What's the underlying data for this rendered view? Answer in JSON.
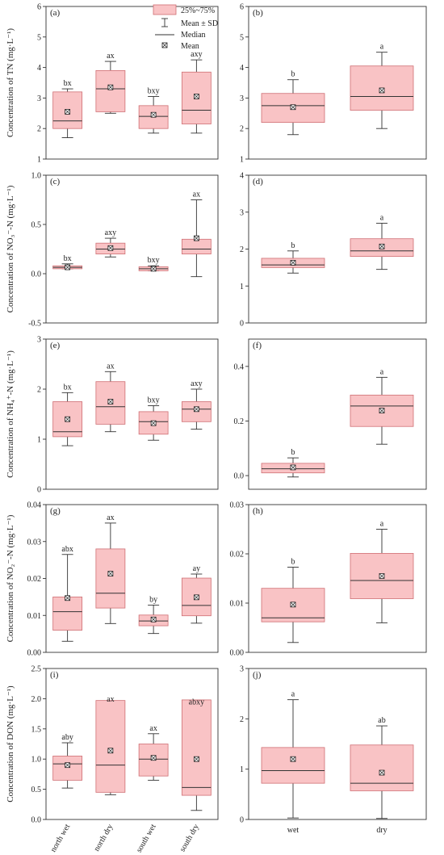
{
  "legend": {
    "box_label": "25%~75%",
    "sd_label": "Mean ± SD",
    "median_label": "Median",
    "mean_label": "Mean"
  },
  "colors": {
    "box_fill": "#f9c3c5",
    "box_stroke": "#cf6f74",
    "line": "#333333"
  },
  "chart_data": [
    {
      "panel": "(a)",
      "type": "box",
      "ylabel": "Concentration of TN (mg·L⁻¹)",
      "ylim": [
        1,
        6
      ],
      "yticks": [
        1,
        2,
        3,
        4,
        5,
        6
      ],
      "categories": [],
      "boxes": [
        {
          "q1": 2.0,
          "q3": 3.2,
          "median": 2.25,
          "mean": 2.55,
          "sd_low": 1.7,
          "sd_high": 3.3,
          "letter": "bx"
        },
        {
          "q1": 2.55,
          "q3": 3.9,
          "median": 3.3,
          "mean": 3.35,
          "sd_low": 2.5,
          "sd_high": 4.2,
          "letter": "ax"
        },
        {
          "q1": 2.0,
          "q3": 2.75,
          "median": 2.4,
          "mean": 2.45,
          "sd_low": 1.85,
          "sd_high": 3.05,
          "letter": "bxy"
        },
        {
          "q1": 2.15,
          "q3": 3.85,
          "median": 2.6,
          "mean": 3.05,
          "sd_low": 1.85,
          "sd_high": 4.25,
          "letter": "axy"
        }
      ]
    },
    {
      "panel": "(b)",
      "type": "box",
      "ylabel": "",
      "ylim": [
        1,
        6
      ],
      "yticks": [
        1,
        2,
        3,
        4,
        5,
        6
      ],
      "categories": [],
      "boxes": [
        {
          "q1": 2.2,
          "q3": 3.15,
          "median": 2.75,
          "mean": 2.7,
          "sd_low": 1.8,
          "sd_high": 3.6,
          "letter": "b"
        },
        {
          "q1": 2.6,
          "q3": 4.05,
          "median": 3.05,
          "mean": 3.25,
          "sd_low": 2.0,
          "sd_high": 4.5,
          "letter": "a"
        }
      ]
    },
    {
      "panel": "(c)",
      "type": "box",
      "ylabel": "Concentration of NO₃⁻-N (mg·L⁻¹)",
      "ylim": [
        -0.5,
        1.0
      ],
      "yticks": [
        "-0.5",
        "0.0",
        "0.5",
        "1.0"
      ],
      "categories": [],
      "boxes": [
        {
          "q1": 0.05,
          "q3": 0.08,
          "median": 0.065,
          "mean": 0.065,
          "sd_low": 0.05,
          "sd_high": 0.1,
          "letter": "bx"
        },
        {
          "q1": 0.2,
          "q3": 0.31,
          "median": 0.25,
          "mean": 0.26,
          "sd_low": 0.17,
          "sd_high": 0.36,
          "letter": "axy"
        },
        {
          "q1": 0.03,
          "q3": 0.07,
          "median": 0.05,
          "mean": 0.05,
          "sd_low": 0.03,
          "sd_high": 0.08,
          "letter": "bxy"
        },
        {
          "q1": 0.2,
          "q3": 0.35,
          "median": 0.25,
          "mean": 0.36,
          "sd_low": -0.03,
          "sd_high": 0.75,
          "letter": "ax"
        }
      ]
    },
    {
      "panel": "(d)",
      "type": "box",
      "ylabel": "",
      "ylim": [
        0,
        4
      ],
      "yticks": [
        0,
        1,
        2,
        3,
        4
      ],
      "categories": [],
      "boxes": [
        {
          "q1": 1.5,
          "q3": 1.75,
          "median": 1.57,
          "mean": 1.63,
          "sd_low": 1.35,
          "sd_high": 1.95,
          "letter": "b"
        },
        {
          "q1": 1.8,
          "q3": 2.28,
          "median": 1.95,
          "mean": 2.07,
          "sd_low": 1.45,
          "sd_high": 2.7,
          "letter": "a"
        }
      ]
    },
    {
      "panel": "(e)",
      "type": "box",
      "ylabel": "Concentration of NH₄⁺-N (mg·L⁻¹)",
      "ylim": [
        0,
        3
      ],
      "yticks": [
        0,
        1,
        2,
        3
      ],
      "categories": [],
      "boxes": [
        {
          "q1": 1.05,
          "q3": 1.75,
          "median": 1.15,
          "mean": 1.4,
          "sd_low": 0.87,
          "sd_high": 1.93,
          "letter": "bx"
        },
        {
          "q1": 1.3,
          "q3": 2.15,
          "median": 1.65,
          "mean": 1.75,
          "sd_low": 1.15,
          "sd_high": 2.35,
          "letter": "ax"
        },
        {
          "q1": 1.1,
          "q3": 1.55,
          "median": 1.35,
          "mean": 1.32,
          "sd_low": 0.98,
          "sd_high": 1.67,
          "letter": "bxy"
        },
        {
          "q1": 1.35,
          "q3": 1.75,
          "median": 1.6,
          "mean": 1.6,
          "sd_low": 1.2,
          "sd_high": 2.0,
          "letter": "axy"
        }
      ]
    },
    {
      "panel": "(f)",
      "type": "box",
      "ylabel": "",
      "ylim": [
        -0.05,
        0.5
      ],
      "yticks": [
        "0.0",
        "0.2",
        "0.4"
      ],
      "categories": [],
      "boxes": [
        {
          "q1": 0.01,
          "q3": 0.045,
          "median": 0.025,
          "mean": 0.03,
          "sd_low": -0.005,
          "sd_high": 0.065,
          "letter": "b"
        },
        {
          "q1": 0.18,
          "q3": 0.295,
          "median": 0.255,
          "mean": 0.238,
          "sd_low": 0.115,
          "sd_high": 0.36,
          "letter": "a"
        }
      ]
    },
    {
      "panel": "(g)",
      "type": "box",
      "ylabel": "Concentration of NO₂⁻-N (mg·L⁻¹)",
      "ylim": [
        0,
        0.04
      ],
      "yticks": [
        "0.00",
        "0.01",
        "0.02",
        "0.03",
        "0.04"
      ],
      "categories": [],
      "boxes": [
        {
          "q1": 0.006,
          "q3": 0.015,
          "median": 0.011,
          "mean": 0.0147,
          "sd_low": 0.003,
          "sd_high": 0.0265,
          "letter": "abx"
        },
        {
          "q1": 0.012,
          "q3": 0.028,
          "median": 0.016,
          "mean": 0.0213,
          "sd_low": 0.0078,
          "sd_high": 0.035,
          "letter": "ax"
        },
        {
          "q1": 0.0072,
          "q3": 0.0101,
          "median": 0.0085,
          "mean": 0.0089,
          "sd_low": 0.0051,
          "sd_high": 0.0128,
          "letter": "by"
        },
        {
          "q1": 0.0099,
          "q3": 0.0201,
          "median": 0.0127,
          "mean": 0.0149,
          "sd_low": 0.0079,
          "sd_high": 0.0212,
          "letter": "ay"
        }
      ]
    },
    {
      "panel": "(h)",
      "type": "box",
      "ylabel": "",
      "ylim": [
        0,
        0.03
      ],
      "yticks": [
        "0.00",
        "0.01",
        "0.02",
        "0.03"
      ],
      "categories": [],
      "boxes": [
        {
          "q1": 0.0062,
          "q3": 0.013,
          "median": 0.007,
          "mean": 0.0097,
          "sd_low": 0.002,
          "sd_high": 0.0173,
          "letter": "b"
        },
        {
          "q1": 0.0109,
          "q3": 0.0201,
          "median": 0.0146,
          "mean": 0.0155,
          "sd_low": 0.006,
          "sd_high": 0.025,
          "letter": "a"
        }
      ]
    },
    {
      "panel": "(i)",
      "type": "box",
      "ylabel": "Concentration of DON (mg·L⁻¹)",
      "ylim": [
        0,
        2.5
      ],
      "yticks": [
        "0.0",
        "0.5",
        "1.0",
        "1.5",
        "2.0",
        "2.5"
      ],
      "categories": [
        "north wet",
        "north dry",
        "south wet",
        "south dry"
      ],
      "boxes": [
        {
          "q1": 0.65,
          "q3": 1.05,
          "median": 0.92,
          "mean": 0.9,
          "sd_low": 0.52,
          "sd_high": 1.27,
          "letter": "aby"
        },
        {
          "q1": 0.45,
          "q3": 1.97,
          "median": 0.9,
          "mean": 1.14,
          "sd_low": 0.41,
          "sd_high": 1.9,
          "letter": "ax"
        },
        {
          "q1": 0.72,
          "q3": 1.25,
          "median": 1.0,
          "mean": 1.02,
          "sd_low": 0.65,
          "sd_high": 1.42,
          "letter": "ax"
        },
        {
          "q1": 0.4,
          "q3": 1.98,
          "median": 0.53,
          "mean": 1.0,
          "sd_low": 0.15,
          "sd_high": 1.85,
          "letter": "abxy"
        }
      ]
    },
    {
      "panel": "(j)",
      "type": "box",
      "ylabel": "",
      "ylim": [
        0,
        3
      ],
      "yticks": [
        0,
        1,
        2,
        3
      ],
      "categories": [
        "wet",
        "dry"
      ],
      "boxes": [
        {
          "q1": 0.72,
          "q3": 1.43,
          "median": 0.97,
          "mean": 1.2,
          "sd_low": 0.03,
          "sd_high": 2.38,
          "letter": "a"
        },
        {
          "q1": 0.57,
          "q3": 1.48,
          "median": 0.72,
          "mean": 0.93,
          "sd_low": 0.02,
          "sd_high": 1.86,
          "letter": "ab"
        }
      ]
    }
  ]
}
